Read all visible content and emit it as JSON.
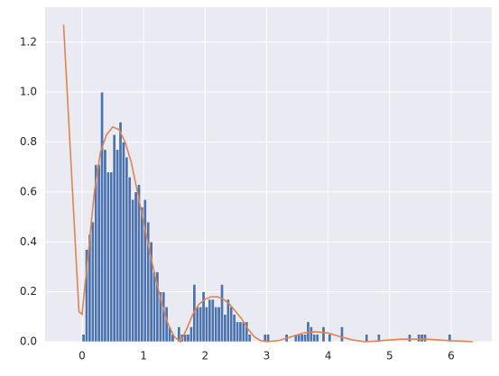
{
  "chart_data": {
    "type": "histogram",
    "bins": [
      0,
      0.05,
      0.1,
      0.15,
      0.2,
      0.25,
      0.3,
      0.35,
      0.4,
      0.45,
      0.5,
      0.55,
      0.6,
      0.65,
      0.7,
      0.75,
      0.8,
      0.85,
      0.9,
      0.95,
      1.0,
      1.05,
      1.1,
      1.15,
      1.2,
      1.25,
      1.3,
      1.35,
      1.4,
      1.45,
      1.5,
      1.55,
      1.6,
      1.65,
      1.7,
      1.75,
      1.8,
      1.85,
      1.9,
      1.95,
      2.0,
      2.05,
      2.1,
      2.15,
      2.2,
      2.25,
      2.3,
      2.35,
      2.4,
      2.45,
      2.5,
      2.55,
      2.6,
      2.65,
      2.7,
      2.75,
      2.8,
      2.85,
      2.9,
      2.95,
      3.0,
      3.05,
      3.1,
      3.15,
      3.2,
      3.25,
      3.3,
      3.35,
      3.4,
      3.45,
      3.5,
      3.55,
      3.6,
      3.65,
      3.7,
      3.75,
      3.8,
      3.85,
      3.9,
      3.95,
      4.0,
      4.05,
      4.1,
      4.15,
      4.2,
      4.25,
      4.3,
      4.35,
      4.4,
      4.45,
      4.5,
      4.55,
      4.6,
      4.65,
      4.7,
      4.75,
      4.8,
      4.85,
      4.9,
      4.95,
      5.0,
      5.05,
      5.1,
      5.15,
      5.2,
      5.25,
      5.3,
      5.35,
      5.4,
      5.45,
      5.5,
      5.55,
      5.6,
      5.65,
      5.7,
      5.75,
      5.8,
      5.85,
      5.9,
      5.95,
      6.0
    ],
    "counts": [
      0.03,
      0.37,
      0.43,
      0.48,
      0.71,
      0.71,
      1.0,
      0.77,
      0.68,
      0.68,
      0.83,
      0.77,
      0.88,
      0.8,
      0.74,
      0.66,
      0.57,
      0.6,
      0.63,
      0.54,
      0.57,
      0.48,
      0.4,
      0.28,
      0.28,
      0.2,
      0.2,
      0.14,
      0.06,
      0.03,
      0,
      0.06,
      0.03,
      0.03,
      0.03,
      0.06,
      0.23,
      0.14,
      0.14,
      0.2,
      0.14,
      0.17,
      0.17,
      0.14,
      0.14,
      0.23,
      0.11,
      0.17,
      0.14,
      0.11,
      0.08,
      0.08,
      0.08,
      0.08,
      0.03,
      0,
      0,
      0,
      0,
      0.03,
      0.03,
      0,
      0,
      0,
      0,
      0,
      0.03,
      0,
      0,
      0.03,
      0.03,
      0.03,
      0.03,
      0.08,
      0.06,
      0.03,
      0.03,
      0,
      0.06,
      0,
      0.03,
      0,
      0,
      0,
      0.06,
      0,
      0,
      0,
      0,
      0,
      0,
      0,
      0.03,
      0,
      0,
      0,
      0.03,
      0,
      0,
      0,
      0,
      0,
      0,
      0,
      0,
      0,
      0.03,
      0,
      0,
      0.03,
      0.03,
      0.03,
      0,
      0,
      0,
      0,
      0,
      0,
      0,
      0.03
    ],
    "color": "#4c72b0",
    "line": {
      "color": "#dd8452",
      "x": [
        -0.3,
        -0.05,
        0,
        0.1,
        0.2,
        0.3,
        0.4,
        0.5,
        0.6,
        0.7,
        0.8,
        0.9,
        1.0,
        1.1,
        1.2,
        1.3,
        1.4,
        1.5,
        1.6,
        1.7,
        1.8,
        1.9,
        2.0,
        2.1,
        2.2,
        2.3,
        2.4,
        2.5,
        2.6,
        2.7,
        2.8,
        2.9,
        3.0,
        3.2,
        3.4,
        3.6,
        3.8,
        4.0,
        4.2,
        4.4,
        4.6,
        4.8,
        5.0,
        5.2,
        5.4,
        5.6,
        5.8,
        6.0,
        6.2,
        6.35
      ],
      "values": [
        1.27,
        0.12,
        0.11,
        0.35,
        0.6,
        0.76,
        0.83,
        0.86,
        0.85,
        0.8,
        0.72,
        0.6,
        0.48,
        0.36,
        0.25,
        0.15,
        0.07,
        0.02,
        0.0,
        0.05,
        0.11,
        0.15,
        0.17,
        0.18,
        0.18,
        0.17,
        0.15,
        0.12,
        0.09,
        0.05,
        0.02,
        0.005,
        0.0,
        0.005,
        0.02,
        0.035,
        0.04,
        0.035,
        0.02,
        0.007,
        0.0,
        0.003,
        0.007,
        0.01,
        0.01,
        0.01,
        0.007,
        0.004,
        0.002,
        0.0
      ]
    },
    "xlim": [
      -0.6,
      6.66
    ],
    "ylim": [
      0,
      1.34
    ],
    "xticks": [
      0,
      1,
      2,
      3,
      4,
      5,
      6
    ],
    "yticks": [
      {
        "value": 0,
        "label": "0.0"
      },
      {
        "value": 0.2,
        "label": "0.2"
      },
      {
        "value": 0.4,
        "label": "0.4"
      },
      {
        "value": 0.6,
        "label": "0.6"
      },
      {
        "value": 0.8,
        "label": "0.8"
      },
      {
        "value": 1.0,
        "label": "1.0"
      },
      {
        "value": 1.2,
        "label": "1.2"
      }
    ],
    "grid": true
  }
}
